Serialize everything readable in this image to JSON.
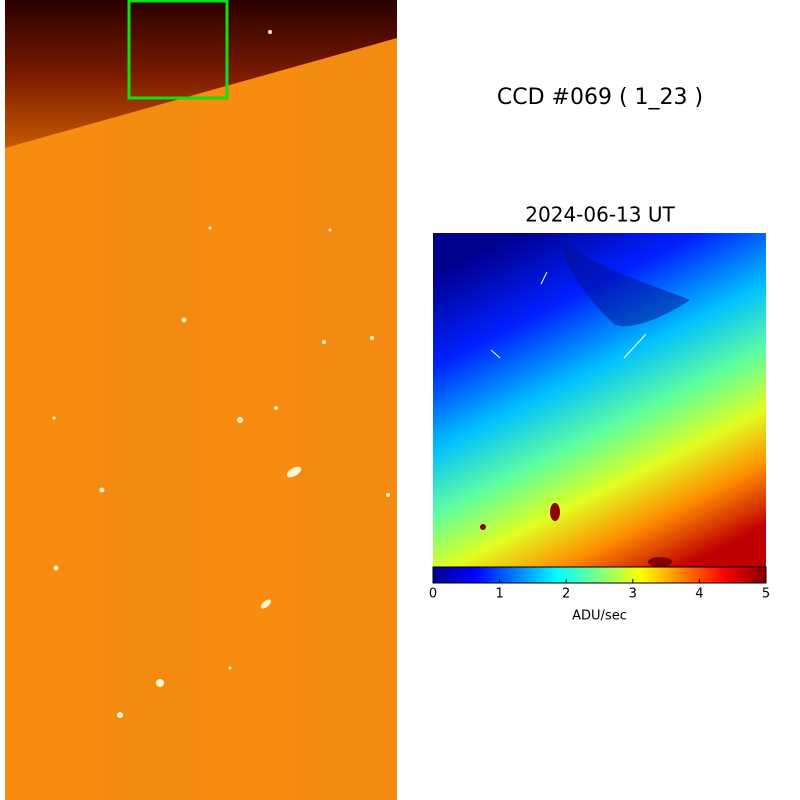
{
  "title": "CCD #069 ( 1_23 )",
  "image_date": "2024-06-13 UT",
  "colorbar": {
    "label": "ADU/sec",
    "lim": [
      0,
      5
    ],
    "ticks": [
      0,
      1,
      2,
      3,
      4,
      5
    ]
  }
}
